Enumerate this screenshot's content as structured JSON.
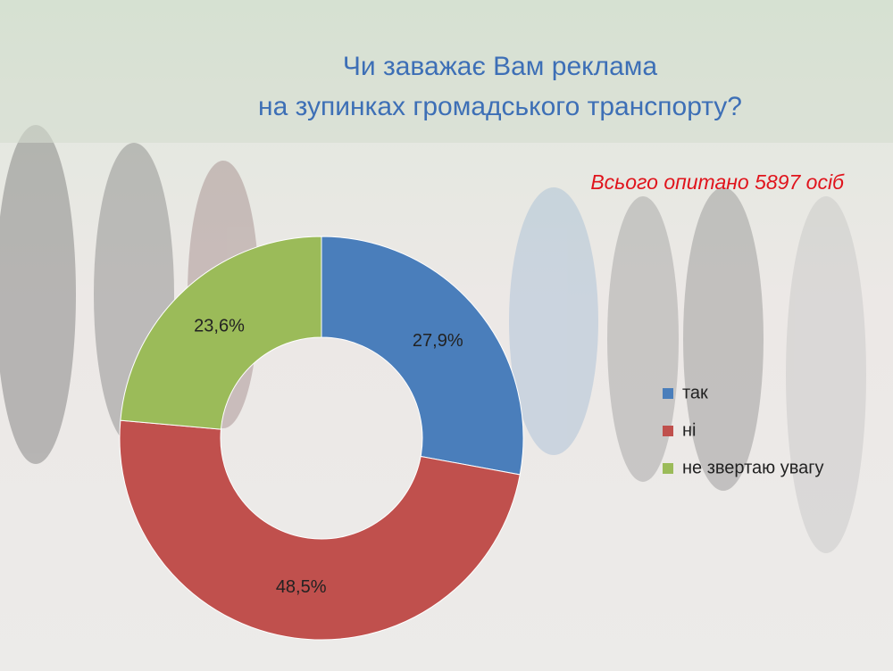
{
  "chart_data": {
    "type": "pie",
    "donut": true,
    "title": [
      "Чи заважає Вам реклама",
      "на зупинках громадського транспорту?"
    ],
    "annotation": "Всього опитано 5897 осіб",
    "categories": [
      "так",
      "ні",
      "не звертаю увагу"
    ],
    "values": [
      27.9,
      48.5,
      23.6
    ],
    "value_labels": [
      "27,9%",
      "48,5%",
      "23,6%"
    ],
    "colors": [
      "#4a7ebb",
      "#c0504d",
      "#9bbb59"
    ],
    "legend": "right"
  }
}
